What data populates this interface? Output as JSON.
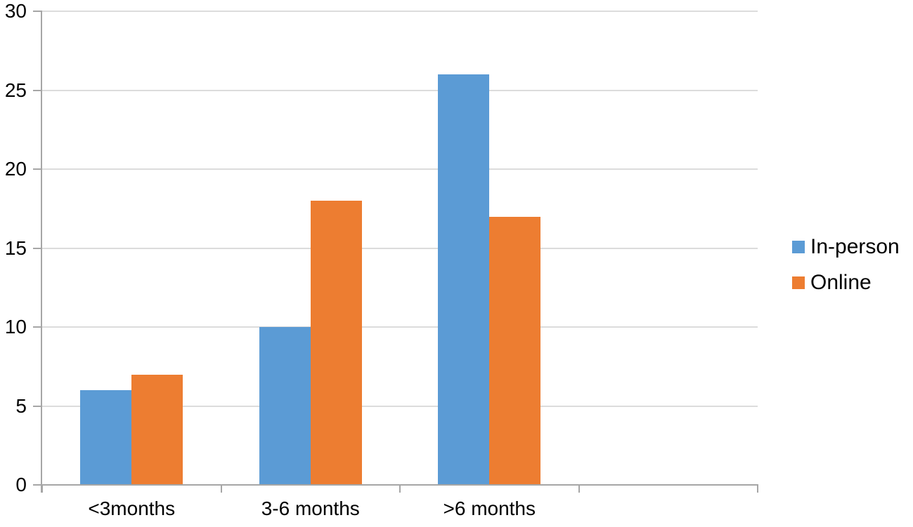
{
  "chart_data": {
    "type": "bar",
    "title": "",
    "xlabel": "",
    "ylabel": "",
    "categories": [
      "<3months",
      "3-6 months",
      ">6 months",
      ""
    ],
    "series": [
      {
        "name": "In-person",
        "color": "#5B9BD5",
        "values": [
          6,
          10,
          26,
          null
        ]
      },
      {
        "name": "Online",
        "color": "#ED7D31",
        "values": [
          7,
          18,
          17,
          null
        ]
      }
    ],
    "ylim": [
      0,
      30
    ],
    "yticks": [
      0,
      5,
      10,
      15,
      20,
      25,
      30
    ],
    "grid": "horizontal",
    "legend_position": "right",
    "colors": {
      "gridline": "#DCDCDC",
      "axis": "#A6A6A6",
      "text": "#000000",
      "background": "#FFFFFF"
    }
  }
}
